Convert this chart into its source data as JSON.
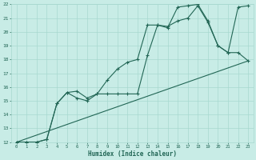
{
  "xlabel": "Humidex (Indice chaleur)",
  "background_color": "#c8ece6",
  "grid_color": "#a8d8d0",
  "line_color": "#226655",
  "xlim": [
    -0.5,
    23.5
  ],
  "ylim": [
    12,
    22
  ],
  "xticks": [
    0,
    1,
    2,
    3,
    4,
    5,
    6,
    7,
    8,
    9,
    10,
    11,
    12,
    13,
    14,
    15,
    16,
    17,
    18,
    19,
    20,
    21,
    22,
    23
  ],
  "yticks": [
    12,
    13,
    14,
    15,
    16,
    17,
    18,
    19,
    20,
    21,
    22
  ],
  "line1_x": [
    0,
    1,
    2,
    3,
    4,
    5,
    6,
    7,
    8,
    9,
    10,
    11,
    12,
    13,
    14,
    15,
    16,
    17,
    18,
    19,
    20,
    21,
    22,
    23
  ],
  "line1_y": [
    12,
    12,
    12,
    12.2,
    14.8,
    15.6,
    15.7,
    15.2,
    15.5,
    15.5,
    15.5,
    15.5,
    15.5,
    18.3,
    20.5,
    20.4,
    20.8,
    21.0,
    21.9,
    20.7,
    19.0,
    18.5,
    18.5,
    17.9
  ],
  "line2_x": [
    0,
    1,
    2,
    3,
    4,
    5,
    6,
    7,
    8,
    9,
    10,
    11,
    12,
    13,
    14,
    15,
    16,
    17,
    18,
    19,
    20,
    21,
    22,
    23
  ],
  "line2_y": [
    12,
    12,
    12,
    12.2,
    14.8,
    15.6,
    15.2,
    15.0,
    15.5,
    16.5,
    17.3,
    17.8,
    18.0,
    20.5,
    20.5,
    20.3,
    21.8,
    21.9,
    22.0,
    20.8,
    19.0,
    18.5,
    21.8,
    21.9
  ],
  "line3_x": [
    0,
    23
  ],
  "line3_y": [
    12,
    17.9
  ]
}
